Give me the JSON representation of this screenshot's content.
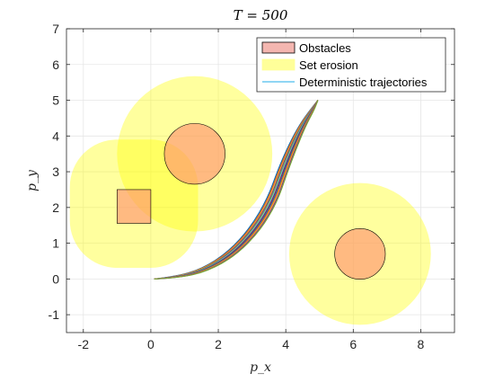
{
  "chart_data": {
    "type": "line",
    "title": "T = 500",
    "xlabel": "p_x",
    "ylabel": "p_y",
    "xlim": [
      -2.5,
      9
    ],
    "ylim": [
      -1.5,
      7
    ],
    "xticks": [
      -2,
      0,
      2,
      4,
      6,
      8
    ],
    "yticks": [
      -1,
      0,
      1,
      2,
      3,
      4,
      5,
      6,
      7
    ],
    "grid": true,
    "legend_position": "top-right",
    "legend": [
      {
        "label": "Obstacles",
        "kind": "patch",
        "color": "#f4b6b0",
        "edge": "#000000"
      },
      {
        "label": "Set erosion",
        "kind": "patch",
        "color": "#ffff99",
        "edge": "#ffff99"
      },
      {
        "label": "Deterministic trajectories",
        "kind": "line",
        "color": "#4dbeee"
      }
    ],
    "obstacles": [
      {
        "shape": "circle",
        "cx": 1.3,
        "cy": 3.5,
        "r": 0.9
      },
      {
        "shape": "square",
        "x0": -1.0,
        "y0": 1.5,
        "x1": 0.0,
        "y1": 2.5
      },
      {
        "shape": "circle",
        "cx": 6.2,
        "cy": 0.7,
        "r": 0.75
      }
    ],
    "erosion_regions": [
      {
        "shape": "circle",
        "cx": 1.3,
        "cy": 3.5,
        "r": 2.3
      },
      {
        "shape": "rounded_square",
        "x0": -2.4,
        "y0": 0.1,
        "x1": 1.4,
        "y1": 3.9,
        "corner_r": 1.4
      },
      {
        "shape": "circle",
        "cx": 6.2,
        "cy": 0.7,
        "r": 2.1
      }
    ],
    "trajectories": {
      "count": 12,
      "colors": [
        "#0072bd",
        "#d95319",
        "#edb120",
        "#7e2f8e",
        "#77ac30",
        "#4dbeee",
        "#a2142f",
        "#0072bd",
        "#d95319",
        "#edb120",
        "#7e2f8e",
        "#77ac30"
      ],
      "base": [
        [
          0.1,
          0.0
        ],
        [
          0.8,
          0.05
        ],
        [
          1.6,
          0.25
        ],
        [
          2.4,
          0.7
        ],
        [
          3.1,
          1.4
        ],
        [
          3.6,
          2.2
        ],
        [
          3.9,
          3.0
        ],
        [
          4.2,
          3.7
        ],
        [
          4.5,
          4.3
        ],
        [
          4.8,
          4.75
        ],
        [
          4.95,
          5.0
        ]
      ],
      "spread_x": 0.14,
      "spread_y": 0.06
    }
  }
}
